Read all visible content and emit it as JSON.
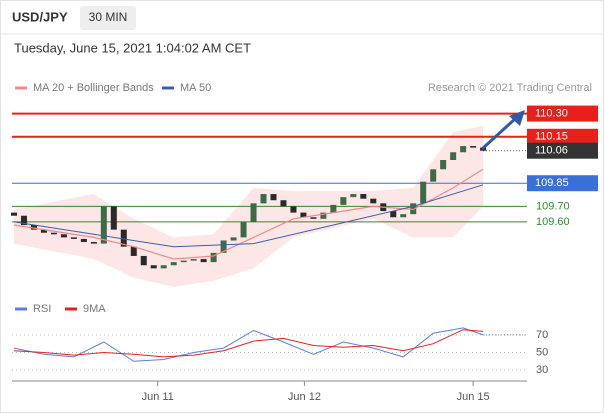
{
  "header": {
    "symbol": "USD/JPY",
    "interval": "30 MIN",
    "date": "Tuesday, June 15, 2021 1:04:02 AM CET",
    "credit": "Research © 2021 Trading Central"
  },
  "chart_data": [
    {
      "type": "candlestick",
      "xlim": [
        -0.2,
        51.4
      ],
      "ylim": [
        109.16,
        110.42
      ],
      "up_color": "#3d6b45",
      "down_color": "#2a2a2a",
      "open": [
        109.66,
        109.64,
        109.58,
        109.55,
        109.53,
        109.52,
        109.5,
        109.49,
        109.47,
        109.46,
        109.7,
        109.55,
        109.44,
        109.38,
        109.32,
        109.3,
        109.32,
        109.34,
        109.35,
        109.36,
        109.34,
        109.4,
        109.48,
        109.5,
        109.6,
        109.72,
        109.78,
        109.74,
        109.7,
        109.66,
        109.63,
        109.62,
        109.66,
        109.71,
        109.76,
        109.78,
        109.75,
        109.72,
        109.67,
        109.63,
        109.65,
        109.72,
        109.86,
        109.94,
        110.0,
        110.05,
        110.09,
        110.08
      ],
      "close": [
        109.64,
        109.58,
        109.55,
        109.53,
        109.52,
        109.5,
        109.49,
        109.47,
        109.46,
        109.7,
        109.55,
        109.44,
        109.38,
        109.32,
        109.3,
        109.32,
        109.34,
        109.35,
        109.36,
        109.34,
        109.4,
        109.48,
        109.5,
        109.6,
        109.72,
        109.78,
        109.74,
        109.7,
        109.66,
        109.63,
        109.62,
        109.66,
        109.71,
        109.76,
        109.78,
        109.75,
        109.72,
        109.67,
        109.63,
        109.65,
        109.72,
        109.86,
        109.94,
        110.0,
        110.05,
        110.09,
        110.08,
        110.06
      ],
      "series": [
        {
          "name": "MA 20 + Bollinger Bands",
          "color": "#f08a8a",
          "band_color": "#fbd5d5",
          "x": [
            0,
            8,
            12,
            16,
            20,
            24,
            28,
            32,
            36,
            40,
            44,
            47
          ],
          "values": [
            109.58,
            109.5,
            109.44,
            109.36,
            109.38,
            109.5,
            109.62,
            109.66,
            109.7,
            109.68,
            109.82,
            109.94
          ],
          "upper": [
            109.68,
            109.78,
            109.62,
            109.5,
            109.52,
            109.82,
            109.8,
            109.8,
            109.8,
            109.82,
            110.18,
            110.22
          ],
          "lower": [
            109.46,
            109.36,
            109.24,
            109.18,
            109.22,
            109.3,
            109.5,
            109.56,
            109.62,
            109.5,
            109.5,
            109.7
          ]
        },
        {
          "name": "MA 50",
          "color": "#3b5fa8",
          "x": [
            0,
            8,
            16,
            24,
            32,
            40,
            47
          ],
          "values": [
            109.6,
            109.52,
            109.44,
            109.46,
            109.58,
            109.7,
            109.84
          ]
        }
      ],
      "levels": [
        {
          "value": 110.3,
          "label": "110.30",
          "color": "#e8201c",
          "style": "box"
        },
        {
          "value": 110.15,
          "label": "110.15",
          "color": "#e8201c",
          "style": "box"
        },
        {
          "value": 110.06,
          "label": "110.06",
          "color": "#333333",
          "style": "current"
        },
        {
          "value": 109.85,
          "label": "109.85",
          "color": "#3a6fd8",
          "style": "box"
        },
        {
          "value": 109.7,
          "label": "109.70",
          "color": "#2e8b2e",
          "style": "plain"
        },
        {
          "value": 109.6,
          "label": "109.60",
          "color": "#2e8b2e",
          "style": "plain"
        }
      ]
    },
    {
      "type": "line",
      "xlim": [
        -0.2,
        51.4
      ],
      "ylim": [
        13,
        87
      ],
      "yticks": [
        30,
        50,
        70
      ],
      "grid": true,
      "xticks": [
        {
          "value": 14.4,
          "label": "Jun 11"
        },
        {
          "value": 29.1,
          "label": "Jun 12"
        },
        {
          "value": 46,
          "label": "Jun 15"
        }
      ],
      "series": [
        {
          "name": "RSI",
          "color": "#5b7fe0",
          "x": [
            0,
            3,
            6,
            9,
            12,
            15,
            18,
            21,
            24,
            27,
            30,
            33,
            36,
            39,
            42,
            45,
            47
          ],
          "values": [
            55,
            48,
            45,
            62,
            40,
            42,
            50,
            55,
            75,
            62,
            48,
            62,
            55,
            45,
            72,
            78,
            70
          ]
        },
        {
          "name": "9MA",
          "color": "#e8201c",
          "x": [
            0,
            3,
            6,
            9,
            12,
            15,
            18,
            21,
            24,
            27,
            30,
            33,
            36,
            39,
            42,
            45,
            47
          ],
          "values": [
            52,
            50,
            47,
            50,
            48,
            45,
            47,
            52,
            63,
            66,
            58,
            56,
            58,
            52,
            60,
            76,
            74
          ]
        }
      ]
    }
  ]
}
